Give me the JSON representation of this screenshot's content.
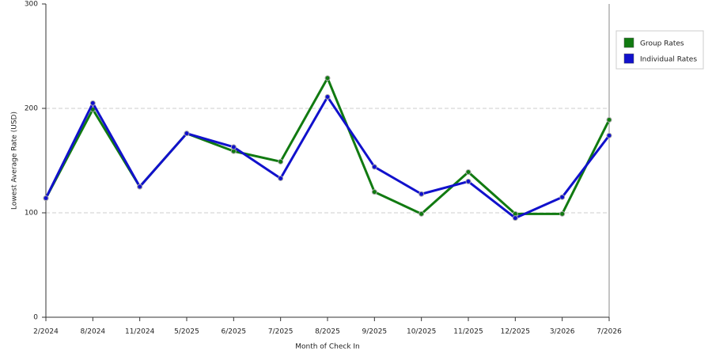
{
  "chart_data": {
    "type": "line",
    "x_label": "Month of Check In",
    "y_label": "Lowest Average Rate (USD)",
    "categories": [
      "2/2024",
      "8/2024",
      "11/2024",
      "5/2025",
      "6/2025",
      "7/2025",
      "8/2025",
      "9/2025",
      "10/2025",
      "11/2025",
      "12/2025",
      "3/2026",
      "7/2026"
    ],
    "series": [
      {
        "name": "Group Rates",
        "color": "#117a11",
        "values": [
          114,
          199,
          125,
          176,
          159,
          149,
          229,
          120,
          99,
          139,
          99,
          99,
          189
        ]
      },
      {
        "name": "Individual Rates",
        "color": "#1111cc",
        "values": [
          114,
          205,
          125,
          176,
          163,
          133,
          211,
          144,
          118,
          130,
          95,
          115,
          174
        ]
      }
    ],
    "ylim": [
      0,
      300
    ],
    "yticks": [
      0,
      100,
      200,
      300
    ],
    "grid": true,
    "legend": "right"
  }
}
